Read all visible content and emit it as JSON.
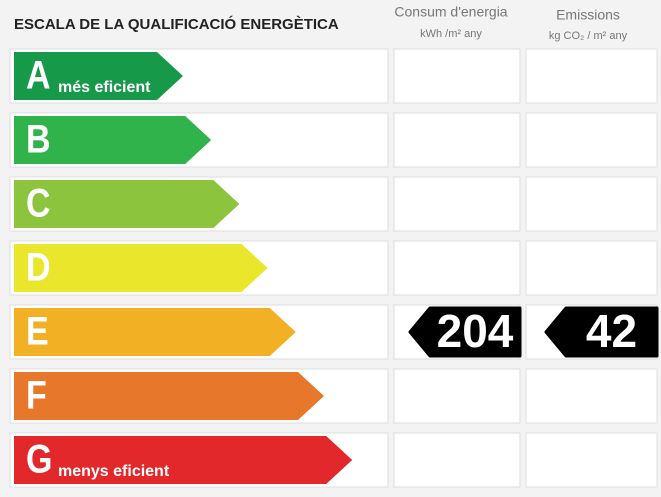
{
  "header": {
    "title": "ESCALA DE LA QUALIFICACIÓ ENERGÈTICA",
    "columns": [
      {
        "title": "Consum d'energia",
        "unit": "kWh /m² any"
      },
      {
        "title": "Emissions",
        "unit": "kg CO₂ / m² any"
      }
    ]
  },
  "scale": [
    {
      "letter": "A",
      "label": "més eficient",
      "color": "#17994a"
    },
    {
      "letter": "B",
      "color": "#2fb34a"
    },
    {
      "letter": "C",
      "color": "#8cc43e"
    },
    {
      "letter": "D",
      "color": "#e9e62b"
    },
    {
      "letter": "E",
      "color": "#f2b125"
    },
    {
      "letter": "F",
      "color": "#e6772b"
    },
    {
      "letter": "G",
      "label": "menys eficient",
      "color": "#e2282b"
    }
  ],
  "rating": {
    "letter": "E",
    "values": [
      204,
      42
    ]
  }
}
